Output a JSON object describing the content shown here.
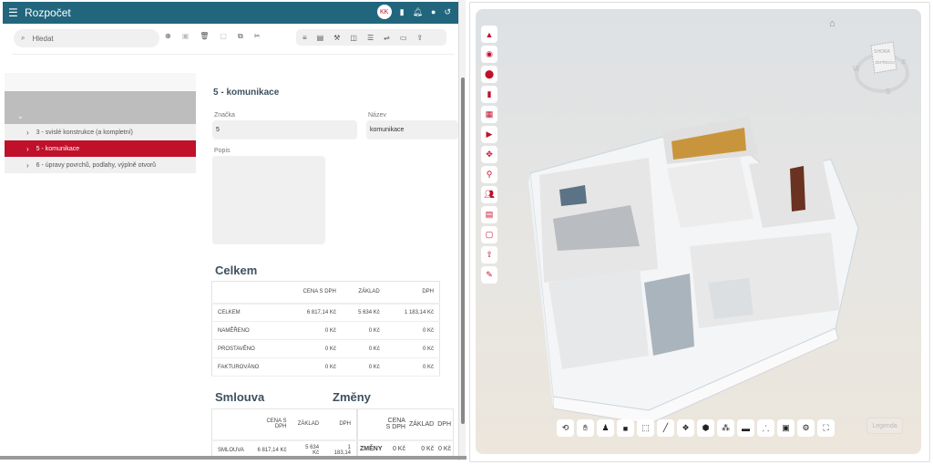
{
  "header": {
    "title": "Rozpočet",
    "avatar": "KK",
    "icons": [
      "document-icon",
      "bell-icon",
      "help-icon",
      "logout-icon"
    ]
  },
  "search": {
    "placeholder": "Hledat"
  },
  "toolbar1": [
    "plus-circle-icon",
    "save-icon",
    "delete-icon",
    "paste-icon",
    "copy-icon",
    "cut-icon"
  ],
  "toolbar2": [
    "list-icon",
    "document-icon",
    "tools-icon",
    "split-icon",
    "list-check-icon",
    "sliders-icon",
    "monitor-icon",
    "export-icon"
  ],
  "tree": {
    "items": [
      {
        "label": "3 - svislé konstrukce (a kompletní)",
        "selected": false
      },
      {
        "label": "5 - komunikace",
        "selected": true
      },
      {
        "label": "6 - úpravy povrchů, podlahy, výplně otvorů",
        "selected": false
      }
    ]
  },
  "detail": {
    "title": "5 - komunikace",
    "znacka_label": "Značka",
    "znacka_value": "5",
    "nazev_label": "Název",
    "nazev_value": "komunikace",
    "popis_label": "Popis",
    "popis_value": ""
  },
  "celkem": {
    "title": "Celkem",
    "columns": [
      "",
      "CENA S DPH",
      "ZÁKLAD",
      "DPH"
    ],
    "rows": [
      [
        "CELKEM",
        "6 817,14 Kč",
        "5 634 Kč",
        "1 183,14 Kč"
      ],
      [
        "NAMĚŘENO",
        "0 Kč",
        "0 Kč",
        "0 Kč"
      ],
      [
        "PROSTAVĚNO",
        "0 Kč",
        "0 Kč",
        "0 Kč"
      ],
      [
        "FAKTUROVÁNO",
        "0 Kč",
        "0 Kč",
        "0 Kč"
      ]
    ]
  },
  "smlouva": {
    "title": "Smlouva",
    "columns": [
      "",
      "CENA S DPH",
      "ZÁKLAD",
      "DPH"
    ],
    "rows": [
      [
        "SMLOUVA",
        "6 817,14 Kč",
        "5 634 Kč",
        "1 183,14"
      ]
    ]
  },
  "zmeny": {
    "title": "Změny",
    "columns": [
      "",
      "CENA S DPH",
      "ZÁKLAD",
      "DPH"
    ],
    "rows": [
      [
        "ZMĚNY",
        "0 Kč",
        "0 Kč",
        "0 Kč"
      ]
    ]
  },
  "viewer": {
    "cube_top": "SHORA",
    "cube_front": "ZEPŘEDU",
    "compass": [
      "W",
      "E",
      "S"
    ],
    "legend_label": "Legenda",
    "side_tools": [
      "collapse-icon",
      "model-icon",
      "layers-icon",
      "document-icon",
      "table-icon",
      "play-icon",
      "move-icon",
      "pin-icon",
      "users-icon",
      "list-icon",
      "bounding-box-icon",
      "upload-file-icon",
      "edit-icon"
    ],
    "bottom_tools": [
      "orbit-icon",
      "pan-icon",
      "walk-icon",
      "camera-icon",
      "section-box-icon",
      "measure-icon",
      "explode-icon",
      "model-browser-icon",
      "layers-icon",
      "folder-icon",
      "structure-icon",
      "properties-icon",
      "settings-icon",
      "fullscreen-icon"
    ]
  },
  "colors": {
    "header": "#22667d",
    "accent": "#c0102a"
  }
}
